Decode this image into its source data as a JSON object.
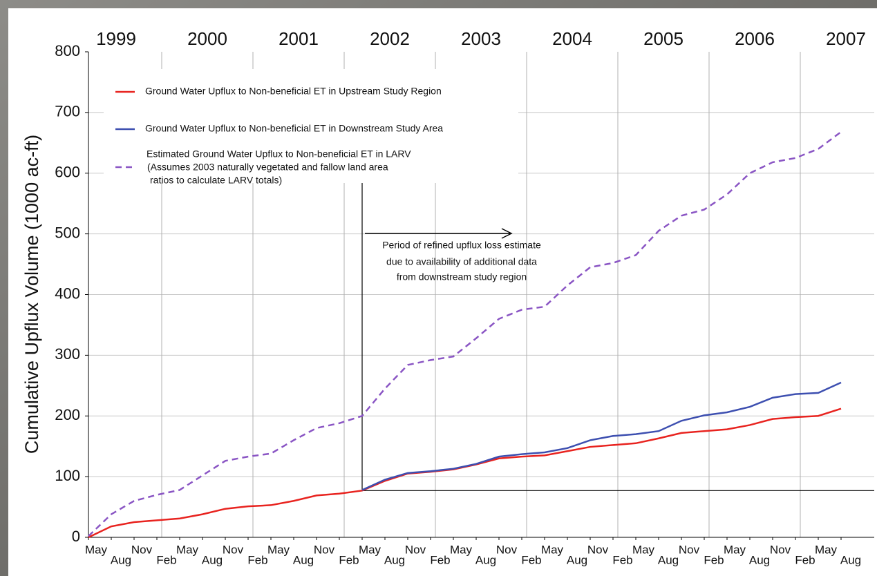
{
  "chart_data": {
    "type": "line",
    "y_label": "Cumulative Upflux Volume (1000 ac-ft)",
    "years": [
      "1999",
      "2000",
      "2001",
      "2002",
      "2003",
      "2004",
      "2005",
      "2006",
      "2007"
    ],
    "categories": [
      "May",
      "Aug",
      "Nov",
      "Feb",
      "May",
      "Aug",
      "Nov",
      "Feb",
      "May",
      "Aug",
      "Nov",
      "Feb",
      "May",
      "Aug",
      "Nov",
      "Feb",
      "May",
      "Aug",
      "Nov",
      "Feb",
      "May",
      "Aug",
      "Nov",
      "Feb",
      "May",
      "Aug",
      "Nov",
      "Feb",
      "May",
      "Aug",
      "Nov",
      "Feb",
      "May",
      "Aug"
    ],
    "ylim": [
      0,
      800
    ],
    "yticks": [
      0,
      100,
      200,
      300,
      400,
      500,
      600,
      700,
      800
    ],
    "grid": true,
    "series": [
      {
        "name": "Ground Water Upflux to Non-beneficial ET in Upstream Study Region",
        "color": "#e8231f",
        "style": "solid",
        "values": [
          0,
          18,
          25,
          28,
          31,
          38,
          47,
          51,
          53,
          60,
          69,
          72,
          77,
          93,
          105,
          108,
          112,
          120,
          130,
          133,
          135,
          142,
          149,
          152,
          155,
          163,
          172,
          175,
          178,
          185,
          195,
          198,
          200,
          212
        ]
      },
      {
        "name": "Ground Water Upflux to Non-beneficial ET in Downstream Study Area",
        "color": "#3d4fb0",
        "style": "solid",
        "values": [
          null,
          null,
          null,
          null,
          null,
          null,
          null,
          null,
          null,
          null,
          null,
          null,
          78,
          95,
          106,
          109,
          113,
          121,
          133,
          137,
          140,
          147,
          160,
          167,
          170,
          175,
          192,
          201,
          206,
          215,
          230,
          236,
          238,
          255
        ]
      },
      {
        "name": "Estimated Ground Water Upflux to Non-beneficial ET in LARV",
        "color": "#8a55c4",
        "style": "dashed",
        "values": [
          2,
          38,
          60,
          70,
          78,
          102,
          126,
          133,
          138,
          160,
          180,
          188,
          200,
          245,
          284,
          292,
          298,
          328,
          360,
          375,
          380,
          415,
          445,
          452,
          465,
          505,
          530,
          540,
          565,
          600,
          618,
          625,
          640,
          668
        ]
      }
    ],
    "legend_note": [
      "(Assumes 2003 naturally vegetated and fallow land area",
      "ratios to calculate LARV totals)"
    ],
    "annotation": [
      "Period of refined upflux loss estimate",
      "due to availability of additional data",
      "from downstream study region"
    ]
  }
}
